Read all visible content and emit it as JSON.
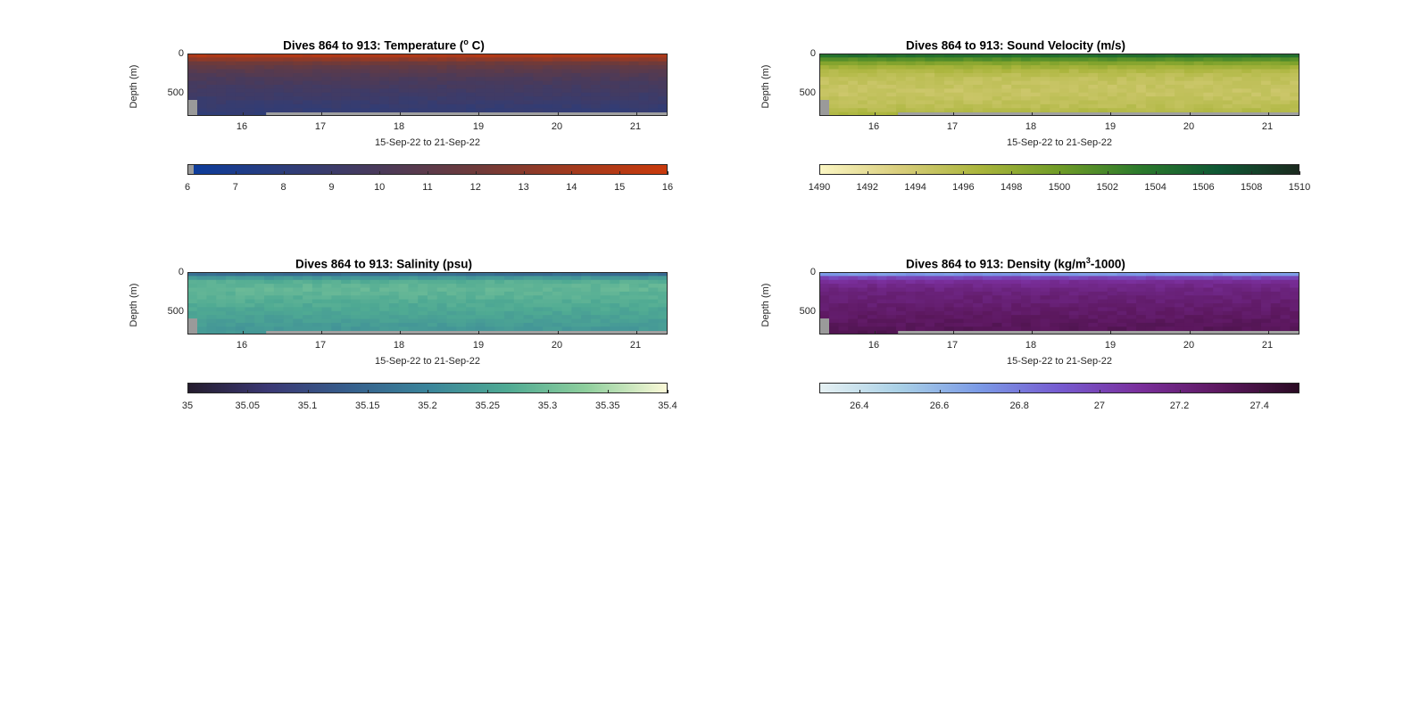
{
  "panels": [
    {
      "id": "temperature",
      "title_main": "Dives 864 to 913: Temperature (",
      "title_sup": "o",
      "title_tail": " C)",
      "ylabel": "Depth (m)",
      "xlabel": "15-Sep-22 to 21-Sep-22",
      "colormap": [
        "#0b3c9c",
        "#2d3d7a",
        "#4a3a5a",
        "#6e3a3a",
        "#a23a1e",
        "#c93a0c"
      ],
      "colorbar_ticks": [
        "6",
        "7",
        "8",
        "9",
        "10",
        "11",
        "12",
        "13",
        "14",
        "15",
        "16"
      ]
    },
    {
      "id": "sound_velocity",
      "title_main": "Dives 864 to 913: Sound Velocity (m/s)",
      "title_sup": "",
      "title_tail": "",
      "ylabel": "Depth (m)",
      "xlabel": "15-Sep-22 to 21-Sep-22",
      "colormap": [
        "#fbf6c3",
        "#d8cd7b",
        "#aab53c",
        "#6f9b27",
        "#2c7a2c",
        "#0f5734",
        "#1b2a1f"
      ],
      "colorbar_ticks": [
        "1490",
        "1492",
        "1494",
        "1496",
        "1498",
        "1500",
        "1502",
        "1504",
        "1506",
        "1508",
        "1510"
      ]
    },
    {
      "id": "salinity",
      "title_main": "Dives 864 to 913: Salinity (psu)",
      "title_sup": "",
      "title_tail": "",
      "ylabel": "Depth (m)",
      "xlabel": "15-Sep-22 to 21-Sep-22",
      "colormap": [
        "#241c2d",
        "#3b3874",
        "#365e8c",
        "#3a849a",
        "#4faa93",
        "#8fcf9d",
        "#fbf9d8"
      ],
      "colorbar_ticks": [
        "35",
        "35.05",
        "35.1",
        "35.15",
        "35.2",
        "35.25",
        "35.3",
        "35.35",
        "35.4"
      ]
    },
    {
      "id": "density",
      "title_main": "Dives 864 to 913: Density (kg/m",
      "title_sup": "3",
      "title_tail": "-1000)",
      "ylabel": "Depth (m)",
      "xlabel": "15-Sep-22 to 21-Sep-22",
      "colormap": [
        "#e6f1f3",
        "#a9d0e6",
        "#7b9ae6",
        "#765bd0",
        "#7a2f9c",
        "#5d1860",
        "#2a0b23"
      ],
      "colorbar_ticks": [
        "26.4",
        "26.6",
        "26.8",
        "27",
        "27.2",
        "27.4"
      ]
    }
  ],
  "chart_data": [
    {
      "type": "heatmap",
      "title": "Dives 864 to 913: Temperature (o C)",
      "xlabel": "15-Sep-22 to 21-Sep-22",
      "ylabel": "Depth (m)",
      "x_ticks": [
        16,
        17,
        18,
        19,
        20,
        21
      ],
      "xlim": [
        15.3,
        21.4
      ],
      "y_ticks": [
        0,
        500
      ],
      "ylim": [
        800,
        0
      ],
      "colorbar": {
        "min": 6,
        "max": 16,
        "ticks": [
          6,
          7,
          8,
          9,
          10,
          11,
          12,
          13,
          14,
          15,
          16
        ]
      },
      "profile": {
        "depth": [
          0,
          50,
          100,
          200,
          300,
          500,
          700,
          800
        ],
        "value": [
          15.5,
          14.0,
          12.3,
          11.0,
          10.2,
          9.3,
          8.6,
          8.3
        ]
      },
      "grid": false
    },
    {
      "type": "heatmap",
      "title": "Dives 864 to 913: Sound Velocity (m/s)",
      "xlabel": "15-Sep-22 to 21-Sep-22",
      "ylabel": "Depth (m)",
      "x_ticks": [
        16,
        17,
        18,
        19,
        20,
        21
      ],
      "xlim": [
        15.3,
        21.4
      ],
      "y_ticks": [
        0,
        500
      ],
      "ylim": [
        800,
        0
      ],
      "colorbar": {
        "min": 1490,
        "max": 1510,
        "ticks": [
          1490,
          1492,
          1494,
          1496,
          1498,
          1500,
          1502,
          1504,
          1506,
          1508,
          1510
        ]
      },
      "profile": {
        "depth": [
          0,
          50,
          100,
          200,
          300,
          500,
          700,
          800
        ],
        "value": [
          1505.5,
          1503.0,
          1499.5,
          1496.5,
          1495.0,
          1494.5,
          1495.5,
          1497.0
        ]
      },
      "grid": false
    },
    {
      "type": "heatmap",
      "title": "Dives 864 to 913: Salinity (psu)",
      "xlabel": "15-Sep-22 to 21-Sep-22",
      "ylabel": "Depth (m)",
      "x_ticks": [
        16,
        17,
        18,
        19,
        20,
        21
      ],
      "xlim": [
        15.3,
        21.4
      ],
      "y_ticks": [
        0,
        500
      ],
      "ylim": [
        800,
        0
      ],
      "colorbar": {
        "min": 35,
        "max": 35.4,
        "ticks": [
          35,
          35.05,
          35.1,
          35.15,
          35.2,
          35.25,
          35.3,
          35.35,
          35.4
        ]
      },
      "profile": {
        "depth": [
          0,
          50,
          100,
          200,
          300,
          500,
          700,
          800
        ],
        "value": [
          35.12,
          35.2,
          35.27,
          35.29,
          35.28,
          35.26,
          35.24,
          35.23
        ]
      },
      "grid": false
    },
    {
      "type": "heatmap",
      "title": "Dives 864 to 913: Density (kg/m3-1000)",
      "xlabel": "15-Sep-22 to 21-Sep-22",
      "ylabel": "Depth (m)",
      "x_ticks": [
        16,
        17,
        18,
        19,
        20,
        21
      ],
      "xlim": [
        15.3,
        21.4
      ],
      "y_ticks": [
        0,
        500
      ],
      "ylim": [
        800,
        0
      ],
      "colorbar": {
        "min": 26.3,
        "max": 27.5,
        "ticks": [
          26.4,
          26.6,
          26.8,
          27,
          27.2,
          27.4
        ]
      },
      "profile": {
        "depth": [
          0,
          50,
          100,
          200,
          300,
          500,
          700,
          800
        ],
        "value": [
          26.5,
          26.9,
          27.1,
          27.18,
          27.22,
          27.27,
          27.32,
          27.35
        ]
      },
      "grid": false
    }
  ]
}
